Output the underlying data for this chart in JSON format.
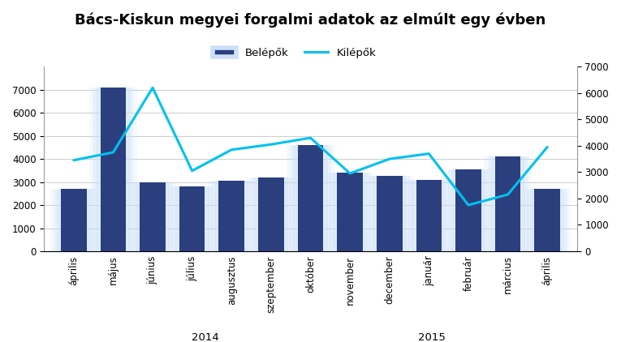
{
  "title": "Bács-Kiskun megyei forgalmi adatok az elmúlt egy évben",
  "categories": [
    "április",
    "május",
    "június",
    "július",
    "augusztus",
    "szeptember",
    "október",
    "november",
    "december",
    "január",
    "február",
    "március",
    "április"
  ],
  "belepok": [
    2700,
    7100,
    3000,
    2800,
    3050,
    3200,
    4600,
    3400,
    3250,
    3100,
    3550,
    4100,
    2700
  ],
  "kilepok": [
    3450,
    3750,
    6200,
    3050,
    3850,
    4050,
    4300,
    2950,
    3500,
    3700,
    1750,
    2150,
    3950
  ],
  "bar_color": "#2b3f7e",
  "bar_edge_color": "#b8d4f0",
  "glow_color": "#cce0f8",
  "line_color": "#00c0f0",
  "line_width": 2.2,
  "ylim_left": [
    0,
    8000
  ],
  "ylim_right": [
    0,
    7000
  ],
  "yticks_left": [
    0,
    1000,
    2000,
    3000,
    4000,
    5000,
    6000,
    7000
  ],
  "yticks_right": [
    0,
    1000,
    2000,
    3000,
    4000,
    5000,
    6000,
    7000
  ],
  "legend_belepok": "Belépők",
  "legend_kilepok": "Kilépők",
  "title_fontsize": 13,
  "tick_fontsize": 8.5,
  "legend_fontsize": 9.5,
  "bg_color": "#ffffff",
  "grid_color": "#cccccc"
}
